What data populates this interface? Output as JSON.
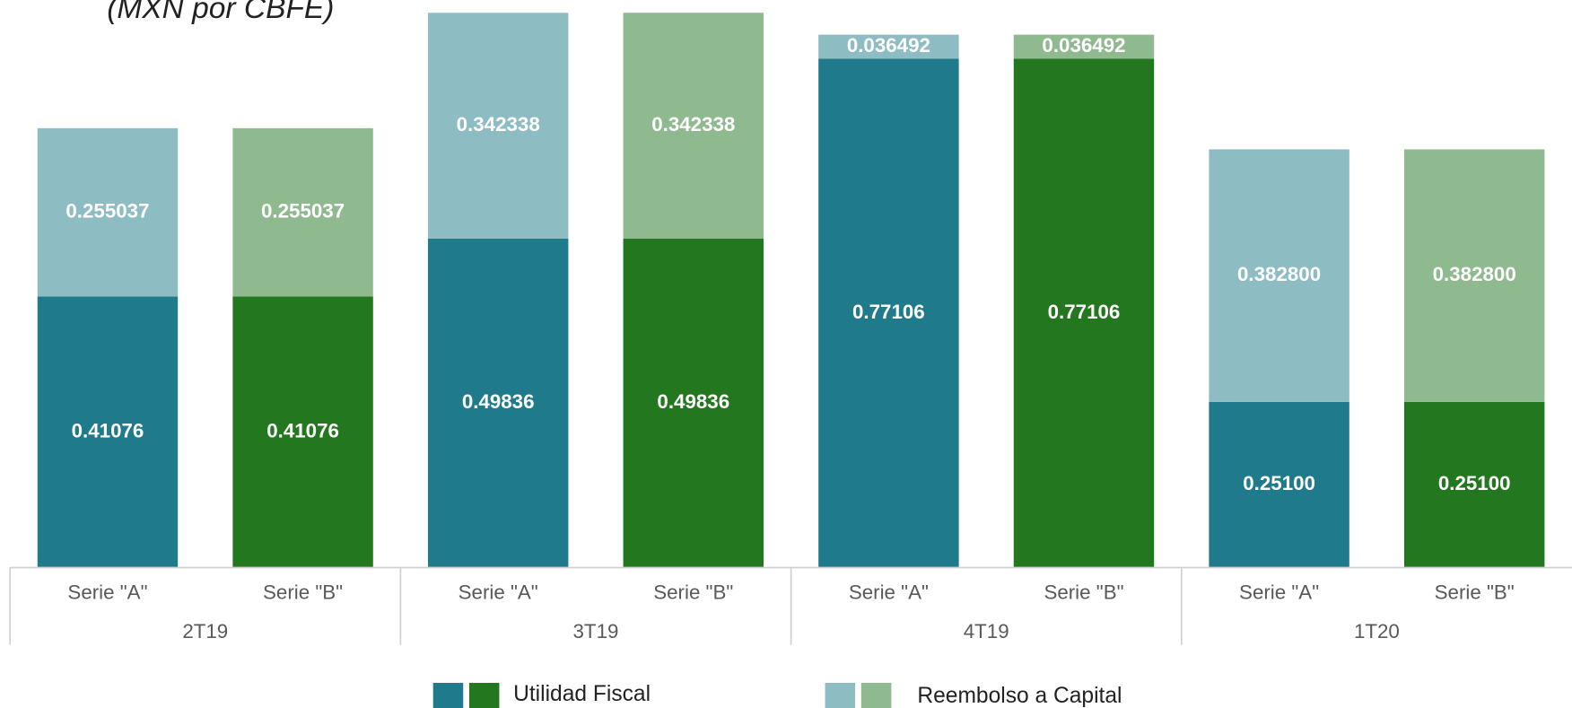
{
  "chart_data": {
    "type": "stacked-bar",
    "subtitle": "(MXN por CBFE)",
    "categories": [
      "Serie \"A\"",
      "Serie \"B\"",
      "Serie \"A\"",
      "Serie \"B\"",
      "Serie \"A\"",
      "Serie \"B\"",
      "Serie \"A\"",
      "Serie \"B\""
    ],
    "groups": [
      "2T19",
      "3T19",
      "4T19",
      "1T20"
    ],
    "series": [
      {
        "name": "Utilidad Fiscal",
        "colors": [
          "#1f7a8c",
          "#23771e"
        ],
        "values": [
          0.41076,
          0.41076,
          0.49836,
          0.49836,
          0.77106,
          0.77106,
          0.251,
          0.251
        ],
        "value_labels": [
          "0.41076",
          "0.41076",
          "0.49836",
          "0.49836",
          "0.77106",
          "0.77106",
          "0.25100",
          "0.25100"
        ]
      },
      {
        "name": "Reembolso a Capital",
        "colors": [
          "#8dbcc2",
          "#8fba8f"
        ],
        "values": [
          0.255037,
          0.255037,
          0.342338,
          0.342338,
          0.036492,
          0.036492,
          0.3828,
          0.3828
        ],
        "value_labels": [
          "0.255037",
          "0.255037",
          "0.342338",
          "0.342338",
          "0.036492",
          "0.036492",
          "0.382800",
          "0.382800"
        ]
      }
    ],
    "ylim": [
      0,
      0.86
    ]
  }
}
